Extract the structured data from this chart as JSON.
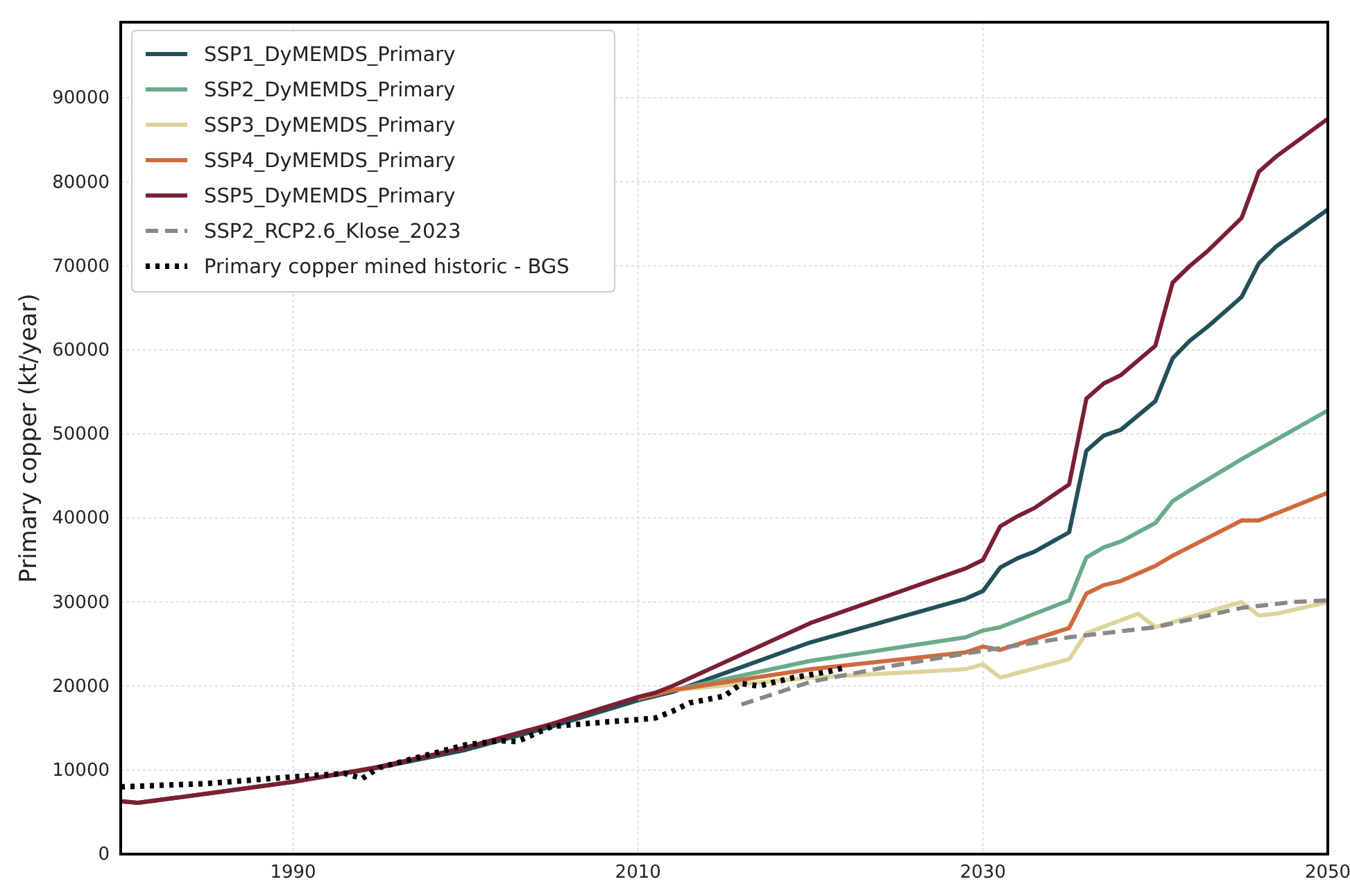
{
  "chart_data": {
    "type": "line",
    "ylabel": "Primary copper (kt/year)",
    "xlim": [
      1980,
      2050
    ],
    "ylim": [
      0,
      99000
    ],
    "xticks": [
      1990,
      2010,
      2030,
      2050
    ],
    "yticks": [
      0,
      10000,
      20000,
      30000,
      40000,
      50000,
      60000,
      70000,
      80000,
      90000
    ],
    "grid": true,
    "legend": "top left",
    "series": [
      {
        "name": "SSP1_DyMEMDS_Primary",
        "color": "#23505a",
        "line_style": "solid",
        "x": [
          1980,
          1981,
          1985,
          1990,
          1995,
          2000,
          2005,
          2010,
          2011,
          2012,
          2020,
          2029,
          2030,
          2031,
          2032,
          2033,
          2035,
          2036,
          2037,
          2038,
          2040,
          2041,
          2042,
          2043,
          2045,
          2046,
          2047,
          2050
        ],
        "values": [
          6300,
          6100,
          7200,
          8600,
          10300,
          12400,
          15200,
          18300,
          18800,
          19300,
          25200,
          30400,
          31300,
          34100,
          35200,
          36000,
          38300,
          48000,
          49800,
          50500,
          53900,
          59000,
          61100,
          62700,
          66300,
          70300,
          72300,
          76700
        ]
      },
      {
        "name": "SSP2_DyMEMDS_Primary",
        "color": "#6aab8a",
        "line_style": "solid",
        "x": [
          2010,
          2011,
          2012,
          2020,
          2029,
          2030,
          2031,
          2035,
          2036,
          2037,
          2038,
          2040,
          2041,
          2042,
          2045,
          2050
        ],
        "values": [
          18500,
          19000,
          19500,
          23000,
          25800,
          26600,
          27000,
          30200,
          35300,
          36500,
          37200,
          39400,
          42000,
          43300,
          47000,
          52800
        ]
      },
      {
        "name": "SSP3_DyMEMDS_Primary",
        "color": "#dcd49b",
        "line_style": "solid",
        "x": [
          2010,
          2011,
          2012,
          2020,
          2029,
          2030,
          2031,
          2035,
          2036,
          2039,
          2040,
          2045,
          2046,
          2047,
          2050
        ],
        "values": [
          18500,
          19000,
          19500,
          21000,
          22000,
          22600,
          21000,
          23200,
          26300,
          28600,
          27000,
          30000,
          28400,
          28600,
          30000
        ]
      },
      {
        "name": "SSP4_DyMEMDS_Primary",
        "color": "#d06a3e",
        "line_style": "solid",
        "x": [
          2010,
          2011,
          2012,
          2020,
          2029,
          2030,
          2031,
          2035,
          2036,
          2037,
          2038,
          2040,
          2041,
          2045,
          2046,
          2050
        ],
        "values": [
          18500,
          19000,
          19500,
          22000,
          24000,
          24700,
          24300,
          26900,
          31000,
          32000,
          32500,
          34300,
          35500,
          39700,
          39700,
          43000
        ]
      },
      {
        "name": "SSP5_DyMEMDS_Primary",
        "color": "#7b1f33",
        "line_style": "solid",
        "x": [
          1980,
          1981,
          1985,
          1990,
          1995,
          2000,
          2005,
          2010,
          2011,
          2012,
          2020,
          2029,
          2030,
          2031,
          2032,
          2033,
          2035,
          2036,
          2037,
          2038,
          2040,
          2041,
          2042,
          2043,
          2045,
          2046,
          2047,
          2050
        ],
        "values": [
          6300,
          6100,
          7200,
          8600,
          10400,
          12700,
          15500,
          18700,
          19200,
          20000,
          27500,
          34000,
          35000,
          39000,
          40200,
          41200,
          44000,
          54200,
          56000,
          57000,
          60500,
          68000,
          70000,
          71700,
          75700,
          81200,
          83000,
          87500
        ]
      },
      {
        "name": "SSP2_RCP2.6_Klose_2023",
        "color": "#888888",
        "line_style": "dashed",
        "x": [
          2016,
          2020,
          2025,
          2030,
          2035,
          2040,
          2045,
          2048,
          2050
        ],
        "values": [
          17800,
          20500,
          22500,
          24200,
          25800,
          27000,
          29300,
          30000,
          30200
        ]
      },
      {
        "name": "Primary copper mined historic - BGS",
        "color": "#000000",
        "line_style": "dotted",
        "x": [
          1980,
          1985,
          1990,
          1993,
          1994,
          1995,
          2000,
          2002,
          2003,
          2005,
          2008,
          2010,
          2011,
          2012,
          2013,
          2015,
          2016,
          2017,
          2019,
          2021,
          2022
        ],
        "values": [
          8000,
          8400,
          9200,
          9600,
          9000,
          10300,
          13000,
          13500,
          13400,
          15200,
          15700,
          16000,
          16200,
          17000,
          18000,
          18800,
          20300,
          20000,
          21000,
          21700,
          22200
        ]
      }
    ]
  }
}
